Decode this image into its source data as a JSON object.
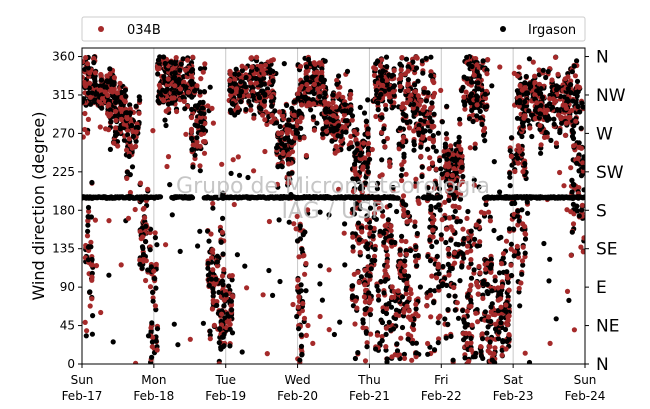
{
  "chart_data": {
    "type": "scatter",
    "ylabel": "Wind direction (degree)",
    "ylim": [
      0,
      370
    ],
    "yticks": [
      0,
      45,
      90,
      135,
      180,
      225,
      270,
      315,
      360
    ],
    "xlim": [
      0,
      7
    ],
    "xticks": [
      {
        "value": 0,
        "line1": "Sun",
        "line2": "Feb-17"
      },
      {
        "value": 1,
        "line1": "Mon",
        "line2": "Feb-18"
      },
      {
        "value": 2,
        "line1": "Tue",
        "line2": "Feb-19"
      },
      {
        "value": 3,
        "line1": "Wed",
        "line2": "Feb-20"
      },
      {
        "value": 4,
        "line1": "Thu",
        "line2": "Feb-21"
      },
      {
        "value": 5,
        "line1": "Fri",
        "line2": "Feb-22"
      },
      {
        "value": 6,
        "line1": "Sat",
        "line2": "Feb-23"
      },
      {
        "value": 7,
        "line1": "Sun",
        "line2": "Feb-24"
      }
    ],
    "compass_labels": [
      {
        "value": 0,
        "label": "N"
      },
      {
        "value": 45,
        "label": "NE"
      },
      {
        "value": 90,
        "label": "E"
      },
      {
        "value": 135,
        "label": "SE"
      },
      {
        "value": 180,
        "label": "S"
      },
      {
        "value": 225,
        "label": "SW"
      },
      {
        "value": 270,
        "label": "W"
      },
      {
        "value": 315,
        "label": "NW"
      },
      {
        "value": 360,
        "label": "N"
      }
    ],
    "grid": "vertical at day boundaries",
    "legend_placement": "top, outside plot",
    "watermark": [
      "Grupo de Micrometeorologia",
      "IAG / USP"
    ],
    "series": [
      {
        "name": "034B",
        "color": "#a52a2a"
      },
      {
        "name": "Irgason",
        "color": "#000000"
      }
    ],
    "segments": [
      {
        "day_start": 0.0,
        "day_end": 0.18,
        "center": 325,
        "spread": 35,
        "series": "both"
      },
      {
        "day_start": 0.05,
        "day_end": 0.15,
        "center": 120,
        "spread": 90,
        "series": "both"
      },
      {
        "day_start": 0.18,
        "day_end": 0.45,
        "center": 320,
        "spread": 25,
        "series": "both"
      },
      {
        "day_start": 0.35,
        "day_end": 0.62,
        "center": 295,
        "spread": 30,
        "series": "both"
      },
      {
        "day_start": 0.6,
        "day_end": 0.8,
        "center": 270,
        "spread": 40,
        "series": "both"
      },
      {
        "day_start": 0.8,
        "day_end": 0.95,
        "center": 150,
        "spread": 50,
        "series": "both"
      },
      {
        "day_start": 0.95,
        "day_end": 1.05,
        "center": 60,
        "spread": 70,
        "series": "both"
      },
      {
        "day_start": 1.05,
        "day_end": 1.3,
        "center": 330,
        "spread": 30,
        "series": "both"
      },
      {
        "day_start": 1.25,
        "day_end": 1.55,
        "center": 330,
        "spread": 25,
        "series": "both"
      },
      {
        "day_start": 1.5,
        "day_end": 1.72,
        "center": 290,
        "spread": 45,
        "series": "both"
      },
      {
        "day_start": 1.75,
        "day_end": 1.98,
        "center": 110,
        "spread": 70,
        "series": "both"
      },
      {
        "day_start": 1.9,
        "day_end": 2.1,
        "center": 50,
        "spread": 40,
        "series": "both"
      },
      {
        "day_start": 2.05,
        "day_end": 2.5,
        "center": 325,
        "spread": 25,
        "series": "both"
      },
      {
        "day_start": 2.45,
        "day_end": 2.7,
        "center": 320,
        "spread": 30,
        "series": "both"
      },
      {
        "day_start": 2.7,
        "day_end": 2.95,
        "center": 255,
        "spread": 35,
        "series": "both"
      },
      {
        "day_start": 2.95,
        "day_end": 3.1,
        "center": 310,
        "spread": 40,
        "series": "both"
      },
      {
        "day_start": 3.0,
        "day_end": 3.15,
        "center": 90,
        "spread": 90,
        "series": "both"
      },
      {
        "day_start": 3.1,
        "day_end": 3.4,
        "center": 325,
        "spread": 30,
        "series": "both"
      },
      {
        "day_start": 3.35,
        "day_end": 3.75,
        "center": 290,
        "spread": 30,
        "series": "both"
      },
      {
        "day_start": 3.75,
        "day_end": 4.0,
        "center": 240,
        "spread": 50,
        "series": "both"
      },
      {
        "day_start": 3.75,
        "day_end": 4.3,
        "center": 120,
        "spread": 110,
        "series": "both"
      },
      {
        "day_start": 4.05,
        "day_end": 4.35,
        "center": 330,
        "spread": 30,
        "series": "both"
      },
      {
        "day_start": 4.3,
        "day_end": 4.7,
        "center": 90,
        "spread": 90,
        "series": "both"
      },
      {
        "day_start": 4.4,
        "day_end": 4.9,
        "center": 300,
        "spread": 60,
        "series": "both"
      },
      {
        "day_start": 4.8,
        "day_end": 5.3,
        "center": 140,
        "spread": 110,
        "series": "both"
      },
      {
        "day_start": 5.05,
        "day_end": 5.3,
        "center": 230,
        "spread": 20,
        "series": "both"
      },
      {
        "day_start": 5.3,
        "day_end": 5.7,
        "center": 90,
        "spread": 90,
        "series": "both"
      },
      {
        "day_start": 5.3,
        "day_end": 5.65,
        "center": 320,
        "spread": 40,
        "series": "both"
      },
      {
        "day_start": 5.65,
        "day_end": 5.95,
        "center": 60,
        "spread": 60,
        "series": "both"
      },
      {
        "day_start": 5.95,
        "day_end": 6.2,
        "center": 200,
        "spread": 90,
        "series": "both"
      },
      {
        "day_start": 6.05,
        "day_end": 6.35,
        "center": 310,
        "spread": 30,
        "series": "both"
      },
      {
        "day_start": 6.3,
        "day_end": 6.9,
        "center": 305,
        "spread": 35,
        "series": "both"
      },
      {
        "day_start": 6.8,
        "day_end": 7.0,
        "center": 230,
        "spread": 80,
        "series": "both"
      }
    ],
    "irgason_flat_line": {
      "value": 195,
      "day_ranges": [
        [
          0.0,
          1.1
        ],
        [
          1.25,
          1.55
        ],
        [
          1.7,
          4.4
        ],
        [
          4.75,
          5.0
        ],
        [
          5.6,
          7.0
        ]
      ]
    }
  }
}
